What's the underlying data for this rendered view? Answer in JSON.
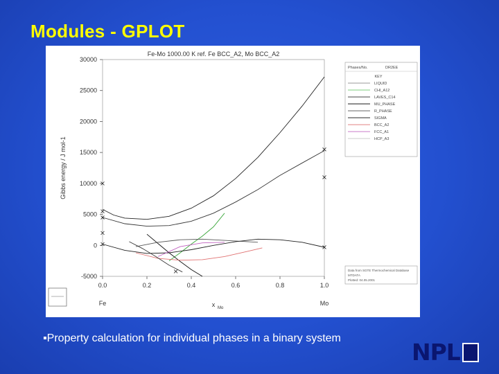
{
  "slide": {
    "title": "Modules - GPLOT",
    "bullet_marker": "▪",
    "bullet": "Property calculation for individual phases in a binary system",
    "logo": "NPL"
  },
  "chart_data": {
    "type": "line",
    "title": "Fe-Mo 1000.00 K ref. Fe BCC_A2, Mo BCC_A2",
    "xlabel": "x",
    "xlabel_sub": "Mo",
    "ylabel": "Gibbs energy / J mol-1",
    "x_tick_labels": [
      "0.0",
      "0.2",
      "0.4",
      "0.6",
      "0.8",
      "1.0"
    ],
    "x_ticks": [
      0.0,
      0.2,
      0.4,
      0.6,
      0.8,
      1.0
    ],
    "y_tick_labels": [
      "-5000",
      "0",
      "5000",
      "10000",
      "15000",
      "20000",
      "25000",
      "30000"
    ],
    "y_ticks": [
      -5000,
      0,
      5000,
      10000,
      15000,
      20000,
      25000,
      30000
    ],
    "xlim": [
      0,
      1
    ],
    "ylim": [
      -5000,
      30000
    ],
    "x_end_labels": [
      "Fe",
      "Mo"
    ],
    "legend": {
      "header_label": "Phases/No.",
      "header_value": "DR2EE",
      "title": "KEY",
      "entries": [
        {
          "label": "LIQUID",
          "color": "#9a9a9a"
        },
        {
          "label": "CHI_A12",
          "color": "#7fcf7f"
        },
        {
          "label": "LAVES_C14",
          "color": "#444444"
        },
        {
          "label": "MU_PHASE",
          "color": "#1a1a1a"
        },
        {
          "label": "R_PHASE",
          "color": "#666666"
        },
        {
          "label": "SIGMA",
          "color": "#2a2a2a"
        },
        {
          "label": "BCC_A2",
          "color": "#e08080"
        },
        {
          "label": "FCC_A1",
          "color": "#c878c8"
        },
        {
          "label": "HCP_A3",
          "color": "#cccccc"
        }
      ]
    },
    "footer_lines": [
      "Data from SGTE Thermochemical Database",
      "MTDATA",
      "Plotted: 04.05.2001"
    ],
    "series": [
      {
        "name": "LIQUID",
        "color": "#222222",
        "x": [
          0,
          0.05,
          0.1,
          0.2,
          0.3,
          0.4,
          0.5,
          0.6,
          0.7,
          0.8,
          0.9,
          1.0
        ],
        "y": [
          5800,
          4900,
          4400,
          4200,
          4700,
          6000,
          8000,
          10800,
          14200,
          18200,
          22500,
          27200
        ]
      },
      {
        "name": "CHI_A12",
        "color": "#3aa63a",
        "x": [
          0.3,
          0.35,
          0.4,
          0.45,
          0.5,
          0.55
        ],
        "y": [
          -2500,
          -1200,
          200,
          1500,
          3000,
          5200
        ]
      },
      {
        "name": "LAVES_C14",
        "color": "#333333",
        "x": [
          0,
          0.1,
          0.2,
          0.3,
          0.4,
          0.5,
          0.6,
          0.7,
          0.8,
          0.9,
          1.0
        ],
        "y": [
          4500,
          3500,
          3100,
          3200,
          3900,
          5200,
          7000,
          9000,
          11300,
          13300,
          15300
        ]
      },
      {
        "name": "MU_PHASE",
        "color": "#111111",
        "x": [
          0.2,
          0.25,
          0.3,
          0.35,
          0.4,
          0.45
        ],
        "y": [
          1800,
          300,
          -1200,
          -2600,
          -3900,
          -5000
        ]
      },
      {
        "name": "R_PHASE",
        "color": "#555555",
        "x": [
          0.15,
          0.25,
          0.35,
          0.45,
          0.55,
          0.7
        ],
        "y": [
          -200,
          500,
          900,
          1000,
          800,
          500
        ]
      },
      {
        "name": "SIGMA",
        "color": "#1f1f1f",
        "x": [
          0,
          0.1,
          0.2,
          0.3,
          0.4,
          0.5,
          0.6,
          0.7,
          0.8,
          0.9,
          1.0
        ],
        "y": [
          200,
          -800,
          -1300,
          -1200,
          -700,
          0,
          600,
          1000,
          900,
          500,
          -300
        ]
      },
      {
        "name": "BCC_A2",
        "color": "#e07070",
        "x": [
          0.15,
          0.25,
          0.35,
          0.45,
          0.55,
          0.65,
          0.72
        ],
        "y": [
          -1200,
          -2100,
          -2400,
          -2300,
          -1800,
          -1000,
          -400
        ]
      },
      {
        "name": "FCC_A1",
        "color": "#c060c0",
        "x": [
          0.25,
          0.35,
          0.45,
          0.55
        ],
        "y": [
          -1800,
          -200,
          400,
          500
        ]
      },
      {
        "name": "HCP_A3",
        "color": "#3a3a3a",
        "x": [
          0.12,
          0.18,
          0.24,
          0.3,
          0.36
        ],
        "y": [
          600,
          -500,
          -1800,
          -3200,
          -4300
        ]
      }
    ],
    "markers": [
      {
        "x": 0.0,
        "y": 10000
      },
      {
        "x": 0.0,
        "y": 5500
      },
      {
        "x": 0.0,
        "y": 4500
      },
      {
        "x": 0.0,
        "y": 2000
      },
      {
        "x": 0.0,
        "y": 200
      },
      {
        "x": 0.33,
        "y": -4200
      },
      {
        "x": 1.0,
        "y": 15500
      },
      {
        "x": 1.0,
        "y": 11000
      },
      {
        "x": 1.0,
        "y": -300
      }
    ]
  }
}
